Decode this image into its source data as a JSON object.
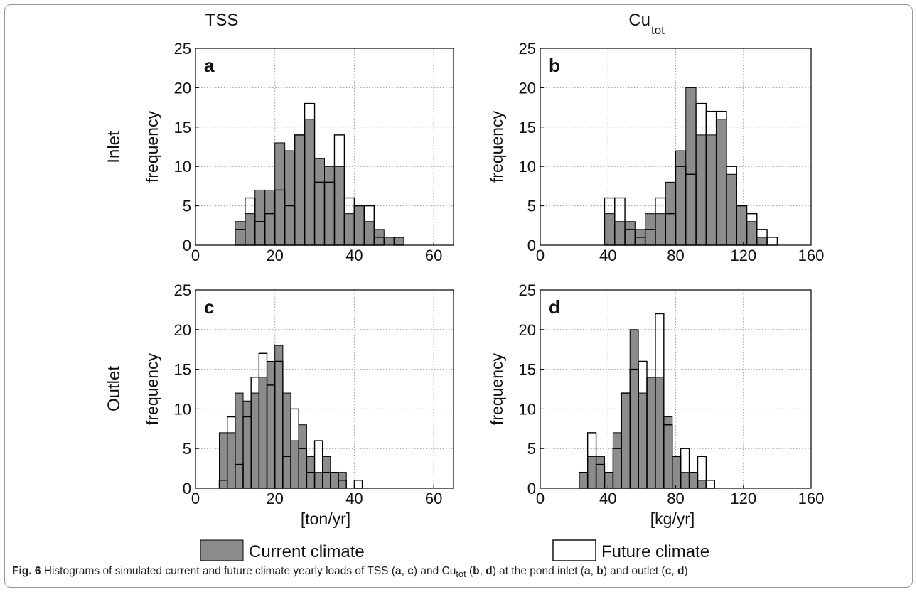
{
  "caption": {
    "fig_label": "Fig. 6",
    "parts": [
      {
        "t": "  Histograms of simulated current and future climate yearly loads of TSS (",
        "b": false
      },
      {
        "t": "a",
        "b": true
      },
      {
        "t": ", ",
        "b": false
      },
      {
        "t": "c",
        "b": true
      },
      {
        "t": ") and Cu",
        "b": false
      },
      {
        "t": "tot",
        "b": false,
        "sub": true
      },
      {
        "t": " (",
        "b": false
      },
      {
        "t": "b",
        "b": true
      },
      {
        "t": ", ",
        "b": false
      },
      {
        "t": "d",
        "b": true
      },
      {
        "t": ") at the pond inlet (",
        "b": false
      },
      {
        "t": "a",
        "b": true
      },
      {
        "t": ", ",
        "b": false
      },
      {
        "t": "b",
        "b": true
      },
      {
        "t": ") and outlet (",
        "b": false
      },
      {
        "t": "c",
        "b": true
      },
      {
        "t": ", ",
        "b": false
      },
      {
        "t": "d",
        "b": true
      },
      {
        "t": ")",
        "b": false
      }
    ]
  },
  "columns": [
    {
      "title": "TSS",
      "sub": ""
    },
    {
      "title": "Cu",
      "sub": "tot"
    }
  ],
  "rows": [
    "Inlet",
    "Outlet"
  ],
  "ylabel": "frequency",
  "x_units": [
    "[ton/yr]",
    "[kg/yr]"
  ],
  "legend": [
    {
      "label": "Current climate",
      "color": "#8c8c8c"
    },
    {
      "label": "Future climate",
      "color": "#ffffff"
    }
  ],
  "colors": {
    "current": "#8c8c8c",
    "future": "#ffffff",
    "edge": "#000000",
    "grid": "#9a9a9a"
  },
  "chart_data": [
    {
      "type": "bar",
      "panel": "a",
      "xlim": [
        0,
        65
      ],
      "ylim": [
        0,
        25
      ],
      "xticks": [
        0,
        20,
        40,
        60
      ],
      "yticks": [
        0,
        5,
        10,
        15,
        20,
        25
      ],
      "grid": true,
      "bin_width": 2.5,
      "series": [
        {
          "name": "Current climate",
          "bin_start": 10,
          "values": [
            3,
            4,
            7,
            7,
            13,
            12,
            14,
            16,
            11,
            10,
            10,
            4,
            5,
            3,
            2,
            1,
            1
          ]
        },
        {
          "name": "Future climate",
          "bin_start": 10,
          "values": [
            2,
            6,
            3,
            4,
            7,
            5,
            14,
            18,
            8,
            8,
            14,
            6,
            5,
            5,
            1,
            0,
            1
          ]
        }
      ]
    },
    {
      "type": "bar",
      "panel": "b",
      "xlim": [
        0,
        160
      ],
      "ylim": [
        0,
        25
      ],
      "xticks": [
        0,
        40,
        80,
        120,
        160
      ],
      "yticks": [
        0,
        5,
        10,
        15,
        20,
        25
      ],
      "grid": true,
      "bin_width": 6,
      "series": [
        {
          "name": "Current climate",
          "bin_start": 38,
          "values": [
            4,
            3,
            3,
            2,
            4,
            4,
            8,
            12,
            20,
            14,
            14,
            16,
            9,
            5,
            3,
            1,
            0,
            0
          ]
        },
        {
          "name": "Future climate",
          "bin_start": 38,
          "values": [
            6,
            6,
            2,
            1,
            2,
            6,
            4,
            10,
            9,
            18,
            17,
            17,
            10,
            5,
            4,
            2,
            1
          ]
        }
      ]
    },
    {
      "type": "bar",
      "panel": "c",
      "xlim": [
        0,
        65
      ],
      "ylim": [
        0,
        25
      ],
      "xticks": [
        0,
        20,
        40,
        60
      ],
      "yticks": [
        0,
        5,
        10,
        15,
        20,
        25
      ],
      "grid": true,
      "bin_width": 2,
      "series": [
        {
          "name": "Current climate",
          "bin_start": 6,
          "values": [
            7,
            7,
            12,
            11,
            12,
            14,
            16,
            18,
            12,
            6,
            8,
            4,
            2,
            4,
            2,
            2,
            0,
            0,
            0
          ]
        },
        {
          "name": "Future climate",
          "bin_start": 6,
          "values": [
            1,
            9,
            3,
            9,
            14,
            17,
            13,
            16,
            4,
            10,
            5,
            2,
            6,
            2,
            2,
            1,
            0,
            1,
            0
          ]
        }
      ]
    },
    {
      "type": "bar",
      "panel": "d",
      "xlim": [
        0,
        160
      ],
      "ylim": [
        0,
        25
      ],
      "xticks": [
        0,
        40,
        80,
        120,
        160
      ],
      "yticks": [
        0,
        5,
        10,
        15,
        20,
        25
      ],
      "grid": true,
      "bin_width": 5,
      "series": [
        {
          "name": "Current climate",
          "bin_start": 23,
          "values": [
            2,
            4,
            4,
            2,
            7,
            12,
            20,
            12,
            14,
            14,
            9,
            4,
            2,
            2,
            1,
            0
          ]
        },
        {
          "name": "Future climate",
          "bin_start": 23,
          "values": [
            2,
            7,
            3,
            2,
            5,
            12,
            15,
            16,
            14,
            22,
            8,
            4,
            5,
            2,
            4,
            1
          ]
        }
      ]
    }
  ]
}
